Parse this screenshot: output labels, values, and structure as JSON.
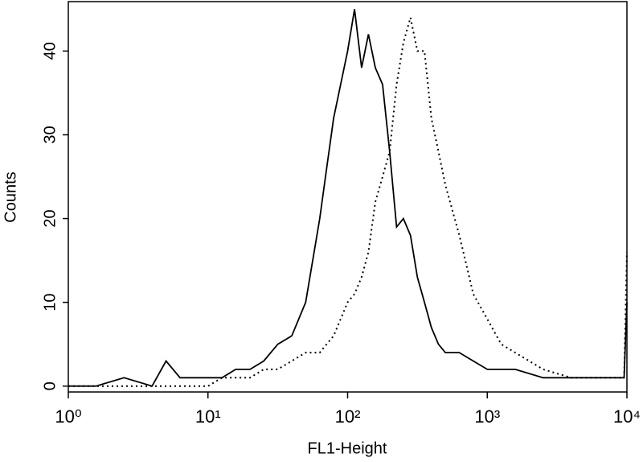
{
  "chart_data": {
    "type": "line",
    "xlabel": "FL1-Height",
    "ylabel": "Counts",
    "xscale": "log",
    "x": [
      1,
      1.58,
      2.51,
      3.98,
      5.01,
      6.31,
      10,
      12.6,
      15.8,
      20,
      25.1,
      31.6,
      39.8,
      50.1,
      63.1,
      70.8,
      79.4,
      89.1,
      100,
      112,
      126,
      141,
      158,
      178,
      200,
      224,
      251,
      282,
      316,
      355,
      398,
      447,
      501,
      631,
      794,
      1000,
      1259,
      1585,
      2512,
      3981,
      6310,
      9550,
      10000
    ],
    "series": [
      {
        "color": "#000000",
        "style": "solid",
        "values": [
          0,
          0,
          1,
          0,
          3,
          1,
          1,
          1,
          2,
          2,
          3,
          5,
          6,
          10,
          20,
          26,
          32,
          36,
          40,
          45,
          38,
          42,
          38,
          36,
          28,
          19,
          20,
          18,
          13,
          10,
          7,
          5,
          4,
          4,
          3,
          2,
          2,
          2,
          1,
          1,
          1,
          1,
          10
        ]
      },
      {
        "color": "#000000",
        "style": "dotted",
        "values": [
          0,
          0,
          0,
          0,
          0,
          0,
          0,
          1,
          1,
          1,
          2,
          2,
          3,
          4,
          4,
          5,
          6,
          8,
          10,
          11,
          13,
          16,
          22,
          25,
          28,
          36,
          41,
          44,
          40,
          40,
          32,
          28,
          24,
          18,
          11,
          8,
          5,
          4,
          2,
          1,
          1,
          1,
          16
        ]
      }
    ],
    "xlim": [
      1,
      10000
    ],
    "xticks": [
      {
        "value": 1,
        "label": "10⁰"
      },
      {
        "value": 10,
        "label": "10¹"
      },
      {
        "value": 100,
        "label": "10²"
      },
      {
        "value": 1000,
        "label": "10³"
      },
      {
        "value": 10000,
        "label": "10⁴"
      }
    ],
    "ylim": [
      -0.7,
      45.9
    ],
    "yticks": [
      0,
      10,
      20,
      30,
      40
    ],
    "grid": false
  }
}
